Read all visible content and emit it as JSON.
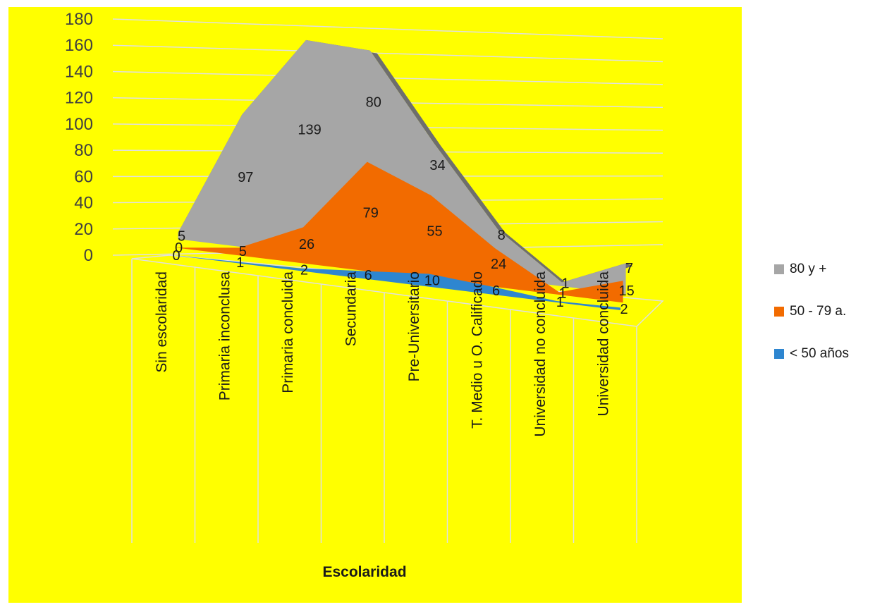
{
  "chart_data": {
    "type": "area",
    "title": "",
    "xlabel": "Escolaridad",
    "ylabel": "",
    "ylim": [
      0,
      180
    ],
    "yticks": [
      "0",
      "20",
      "40",
      "60",
      "80",
      "100",
      "120",
      "140",
      "160",
      "180"
    ],
    "stacked": true,
    "three_d": true,
    "grid": true,
    "legend_position": "right",
    "categories": [
      "Sin escolaridad",
      "Primaria inconclusa",
      "Primaria concluida",
      "Secundaria",
      "Pre-Universitario",
      "T. Medio u O. Calificado",
      "Universidad no concluida",
      "Universidad  concluida"
    ],
    "series": [
      {
        "name": "< 50 años",
        "values": [
          0,
          1,
          2,
          6,
          10,
          6,
          1,
          2
        ],
        "color": "#2e86d0",
        "labels": [
          "0",
          "1",
          "2",
          "6",
          "10",
          "6",
          "1",
          "2"
        ]
      },
      {
        "name": "50 - 79 a.",
        "values": [
          0,
          5,
          26,
          79,
          55,
          24,
          1,
          15
        ],
        "color": "#f26b00",
        "labels": [
          "0",
          "5",
          "26",
          "79",
          "55",
          "24",
          "1",
          "15"
        ]
      },
      {
        "name": "80 y +",
        "values": [
          5,
          97,
          139,
          80,
          34,
          8,
          1,
          7
        ],
        "color": "#a6a6a6",
        "labels": [
          "5",
          "97",
          "139",
          "80",
          "34",
          "8",
          "1",
          "7"
        ]
      }
    ]
  },
  "legend": [
    {
      "label": "80 y +",
      "color": "#a6a6a6"
    },
    {
      "label": "50 - 79 a.",
      "color": "#f26b00"
    },
    {
      "label": "< 50 años",
      "color": "#2e86d0"
    }
  ],
  "colors": {
    "plot_background": "#ffff00",
    "grid": "#e0e0e0",
    "gray_side": "#6e6e6e"
  }
}
